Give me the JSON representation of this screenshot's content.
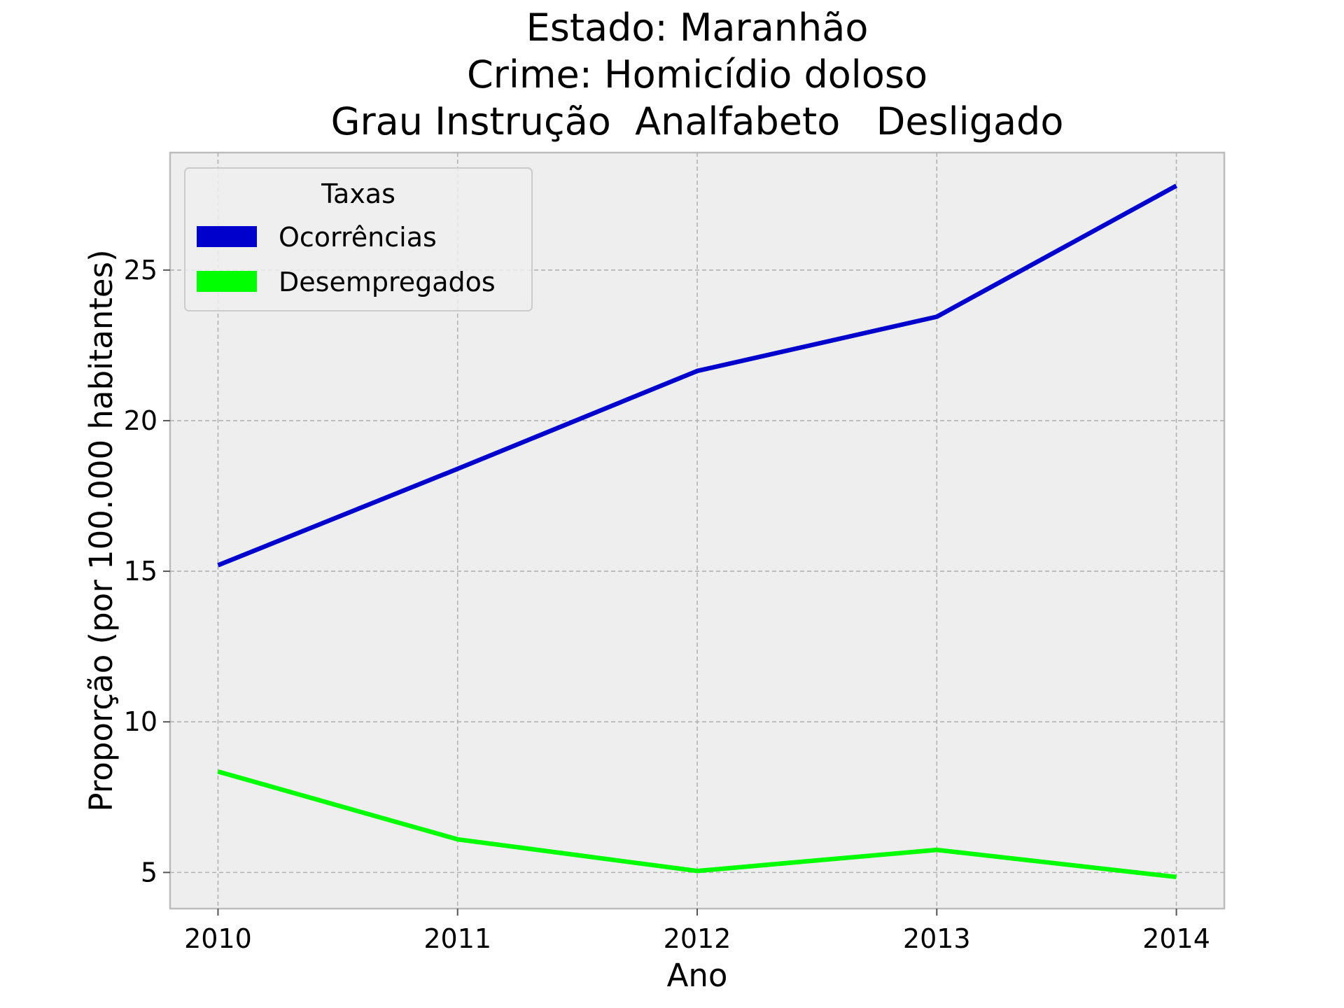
{
  "chart_data": {
    "type": "line",
    "title_lines": [
      "Estado: Maranhão",
      "Crime: Homicídio doloso",
      "Grau Instrução  Analfabeto   Desligado"
    ],
    "xlabel": "Ano",
    "ylabel": "Proporção (por 100.000 habitantes)",
    "x": [
      2010,
      2011,
      2012,
      2013,
      2014
    ],
    "x_tick_labels": [
      "2010",
      "2011",
      "2012",
      "2013",
      "2014"
    ],
    "y_ticks": [
      5,
      10,
      15,
      20,
      25
    ],
    "y_tick_labels": [
      "5",
      "10",
      "15",
      "20",
      "25"
    ],
    "xlim": [
      2009.8,
      2014.2
    ],
    "ylim": [
      3.8,
      28.9
    ],
    "grid": true,
    "legend": {
      "title": "Taxas",
      "placement": "upper-left"
    },
    "series": [
      {
        "name": "Ocorrências",
        "color": "#0000cc",
        "values": [
          15.2,
          18.4,
          21.65,
          23.45,
          27.8
        ]
      },
      {
        "name": "Desempregados",
        "color": "#00ff00",
        "values": [
          8.35,
          6.1,
          5.05,
          5.75,
          4.85
        ]
      }
    ]
  }
}
